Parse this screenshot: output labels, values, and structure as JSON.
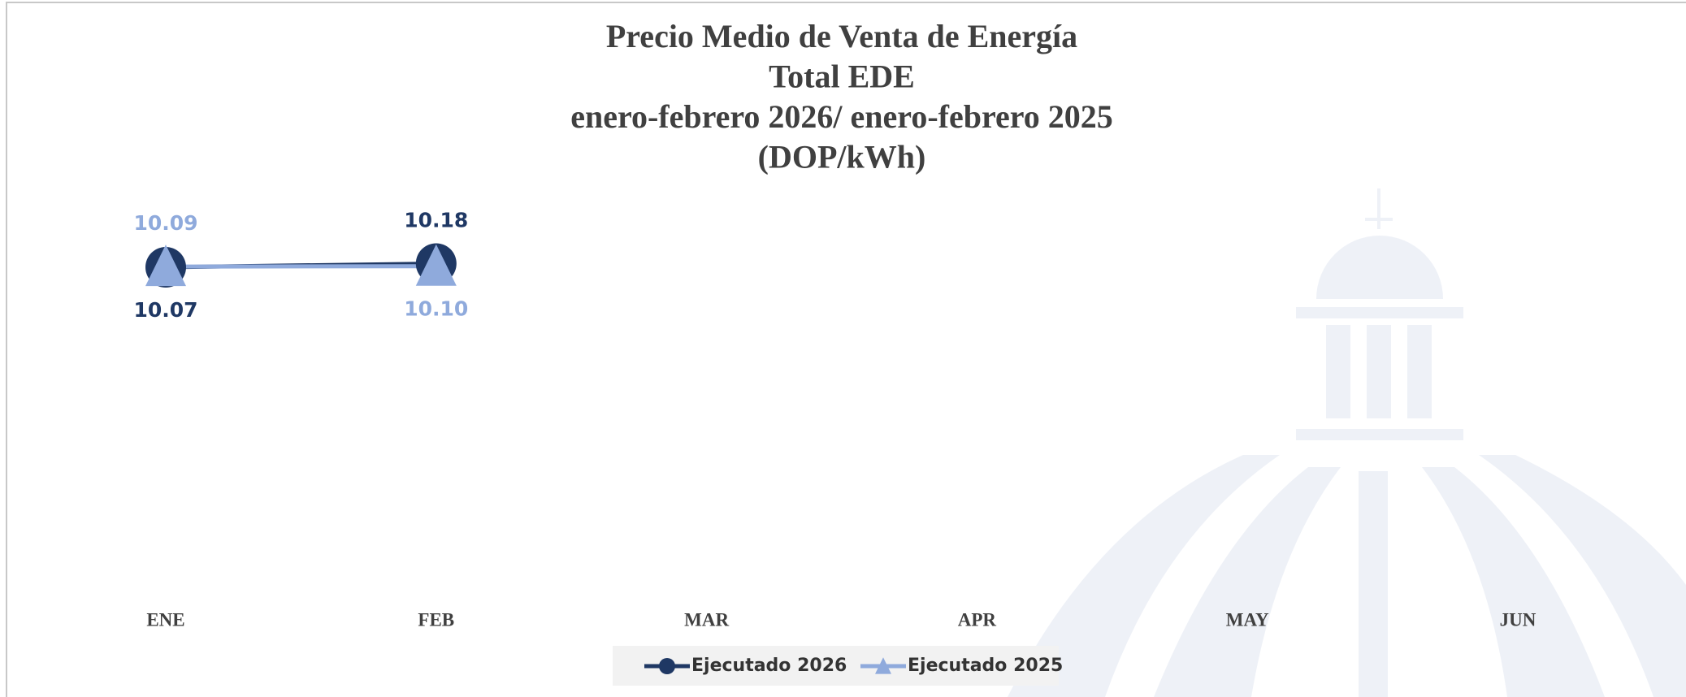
{
  "chart_data": {
    "type": "line",
    "title": [
      "Precio Medio de Venta de Energía",
      "Total EDE",
      "enero-febrero 2026/ enero-febrero 2025",
      "(DOP/kWh)"
    ],
    "categories": [
      "ENE",
      "FEB",
      "MAR",
      "APR",
      "MAY",
      "JUN"
    ],
    "series": [
      {
        "name": "Ejecutado 2026",
        "color": "#1f3864",
        "marker": "circle",
        "values": [
          10.07,
          10.18,
          null,
          null,
          null,
          null
        ],
        "value_labels": [
          "10.07",
          "10.18",
          null,
          null,
          null,
          null
        ]
      },
      {
        "name": "Ejecutado 2025",
        "color": "#8faadc",
        "marker": "triangle",
        "values": [
          10.09,
          10.1,
          null,
          null,
          null,
          null
        ],
        "value_labels": [
          "10.09",
          "10.10",
          null,
          null,
          null,
          null
        ]
      }
    ],
    "ylim": [
      0,
      12
    ],
    "grid": false,
    "legend": "bottom"
  }
}
